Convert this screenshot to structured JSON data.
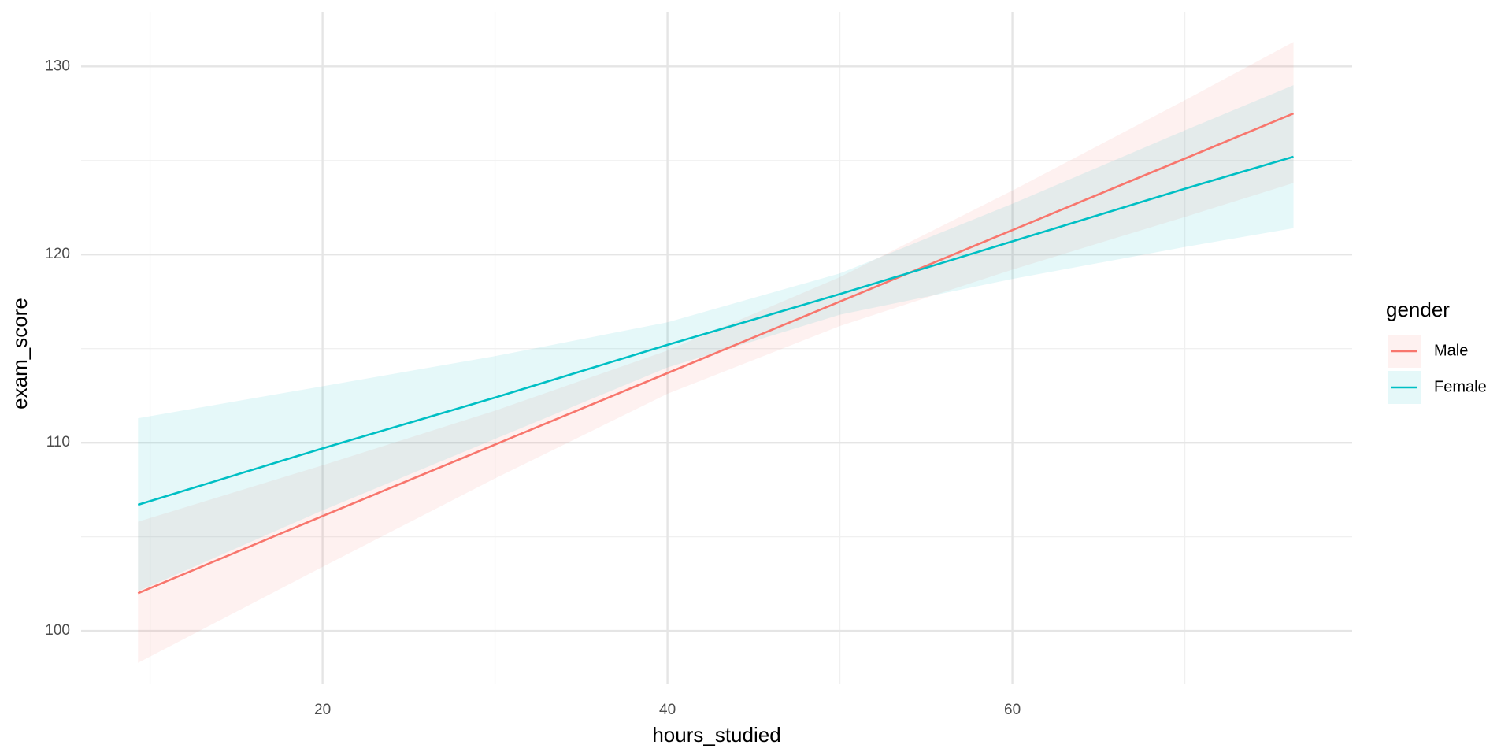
{
  "chart_data": {
    "type": "line",
    "x_label": "hours_studied",
    "y_label": "exam_score",
    "xlim": [
      6,
      79.7
    ],
    "ylim": [
      97.2,
      132.9
    ],
    "xticks": [
      20,
      40,
      60
    ],
    "yticks": [
      100,
      110,
      120,
      130
    ],
    "x_minor_ticks": [
      10,
      30,
      50,
      70
    ],
    "y_minor_ticks": [
      105,
      115,
      125
    ],
    "grid": true,
    "legend_title": "gender",
    "legend_position": "right",
    "series": [
      {
        "name": "Male",
        "color": "#F8766D",
        "x": [
          9.3,
          20,
          30,
          40,
          50,
          60,
          70,
          76.3
        ],
        "values": [
          102.0,
          106.1,
          109.9,
          113.7,
          117.5,
          121.3,
          125.1,
          127.5
        ],
        "lower": [
          98.3,
          103.4,
          108.1,
          112.6,
          116.2,
          119.2,
          122.0,
          123.8
        ],
        "upper": [
          105.8,
          108.8,
          111.7,
          114.9,
          118.8,
          123.4,
          128.2,
          131.3
        ]
      },
      {
        "name": "Female",
        "color": "#00BFC4",
        "x": [
          9.3,
          20,
          30,
          40,
          50,
          60,
          70,
          76.3
        ],
        "values": [
          106.7,
          109.7,
          112.4,
          115.2,
          117.9,
          120.7,
          123.5,
          125.2
        ],
        "lower": [
          102.1,
          106.4,
          110.2,
          114.0,
          116.8,
          118.7,
          120.4,
          121.4
        ],
        "upper": [
          111.3,
          113.0,
          114.6,
          116.4,
          119.0,
          122.7,
          126.6,
          129.0
        ]
      }
    ]
  }
}
